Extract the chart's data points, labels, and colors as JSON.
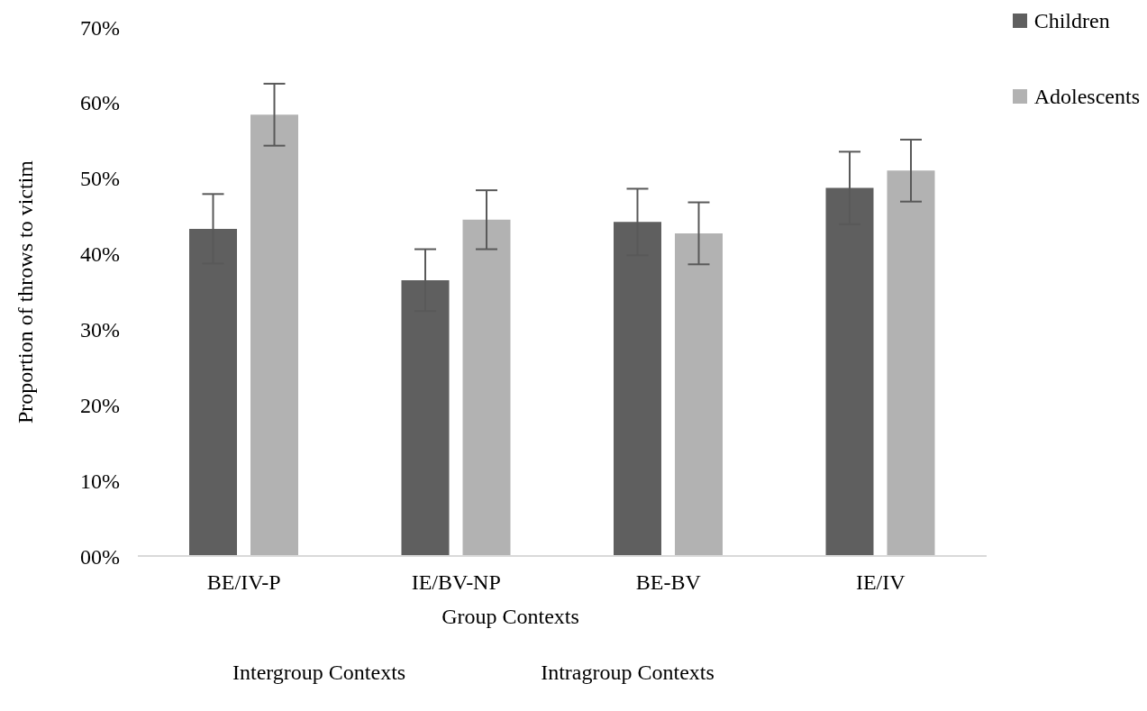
{
  "chart_data": {
    "type": "bar",
    "xlabel": "Group Contexts",
    "ylabel": "Proportion of throws to victim",
    "annotations": [
      "Intergroup Contexts",
      "Intragroup Contexts"
    ],
    "categories": [
      "BE/IV-P",
      "IE/BV-NP",
      "BE-BV",
      "IE/IV"
    ],
    "series": [
      {
        "name": "Children",
        "color": "#5f5f5f",
        "values": [
          43.3,
          36.5,
          44.2,
          48.7
        ],
        "errors": [
          4.6,
          4.1,
          4.4,
          4.8
        ]
      },
      {
        "name": "Adolescents",
        "color": "#b2b2b2",
        "values": [
          58.4,
          44.5,
          42.7,
          51.0
        ],
        "errors": [
          4.1,
          3.9,
          4.1,
          4.1
        ]
      }
    ],
    "ylim": [
      0,
      70
    ],
    "yticks": [
      {
        "value": 0,
        "label": "00%"
      },
      {
        "value": 10,
        "label": "10%"
      },
      {
        "value": 20,
        "label": "20%"
      },
      {
        "value": 30,
        "label": "30%"
      },
      {
        "value": 40,
        "label": "40%"
      },
      {
        "value": 50,
        "label": "50%"
      },
      {
        "value": 60,
        "label": "60%"
      },
      {
        "value": 70,
        "label": "70%"
      }
    ],
    "legend": "top right"
  }
}
